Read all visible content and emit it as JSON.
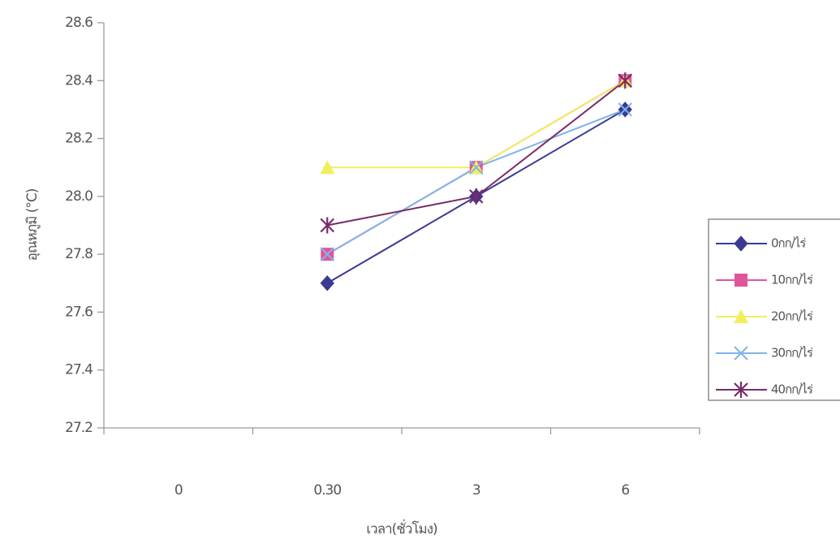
{
  "chart_data": {
    "type": "line",
    "x_label": "เวลา(ชั่วโมง)",
    "y_label": "อุณหภูมิ (°C)",
    "categories": [
      "0",
      "0.30",
      "3",
      "6"
    ],
    "series": [
      {
        "name": "0กก/ไร่",
        "color": "#3a3a94",
        "marker": "diamond",
        "values": [
          null,
          27.7,
          28.0,
          28.3
        ]
      },
      {
        "name": "10กก/ไร่",
        "color": "#e0559a",
        "marker": "square",
        "values": [
          null,
          27.8,
          28.1,
          28.4
        ]
      },
      {
        "name": "20กก/ไร่",
        "color": "#f2ee5e",
        "marker": "triangle",
        "values": [
          null,
          28.1,
          28.1,
          28.4
        ]
      },
      {
        "name": "30กก/ไร่",
        "color": "#80b4ea",
        "marker": "x",
        "values": [
          null,
          27.8,
          28.1,
          28.3
        ]
      },
      {
        "name": "40กก/ไร่",
        "color": "#7a2a68",
        "marker": "star",
        "values": [
          null,
          27.9,
          28.0,
          28.4
        ]
      }
    ],
    "ylim": [
      27.2,
      28.6
    ],
    "yticks": [
      27.2,
      27.4,
      27.6,
      27.8,
      {
        "value": 28.0,
        "label": "28.0"
      },
      28.2,
      28.4,
      28.6
    ],
    "legend": "right"
  }
}
